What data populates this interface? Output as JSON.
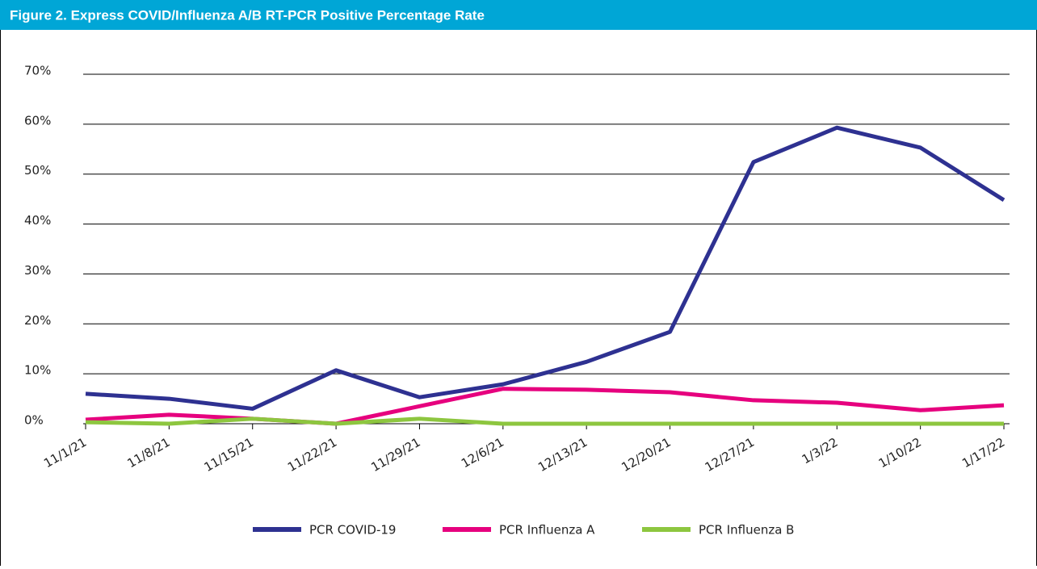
{
  "chart_data": {
    "type": "line",
    "title": "Figure 2. Express COVID/Influenza A/B RT-PCR Positive Percentage Rate",
    "categories": [
      "11/1/21",
      "11/8/21",
      "11/15/21",
      "11/22/21",
      "11/29/21",
      "12/6/21",
      "12/13/21",
      "12/20/21",
      "12/27/21",
      "1/3/22",
      "1/10/22",
      "1/17/22"
    ],
    "series": [
      {
        "name": "PCR COVID-19",
        "color": "#2e3191",
        "values": [
          6.0,
          5.0,
          3.0,
          10.7,
          5.3,
          7.9,
          12.4,
          18.4,
          52.4,
          59.3,
          55.3,
          44.8
        ]
      },
      {
        "name": "PCR Influenza A",
        "color": "#e6007e",
        "values": [
          0.8,
          1.8,
          1.0,
          0,
          3.5,
          7.0,
          6.8,
          6.3,
          4.7,
          4.2,
          2.7,
          3.7
        ]
      },
      {
        "name": "PCR Influenza B",
        "color": "#8dc63f",
        "values": [
          0.3,
          0,
          1.0,
          0,
          1.0,
          0,
          0,
          0,
          0,
          0,
          0,
          0
        ]
      }
    ],
    "ylim": [
      0,
      70
    ],
    "yticks": [
      {
        "value": 0,
        "label": "0%"
      },
      {
        "value": 10,
        "label": "10%"
      },
      {
        "value": 20,
        "label": "20%"
      },
      {
        "value": 30,
        "label": "30%"
      },
      {
        "value": 40,
        "label": "40%"
      },
      {
        "value": 50,
        "label": "50%"
      },
      {
        "value": 60,
        "label": "60%"
      },
      {
        "value": 70,
        "label": "70%"
      }
    ],
    "grid": true,
    "legend": "bottom"
  }
}
